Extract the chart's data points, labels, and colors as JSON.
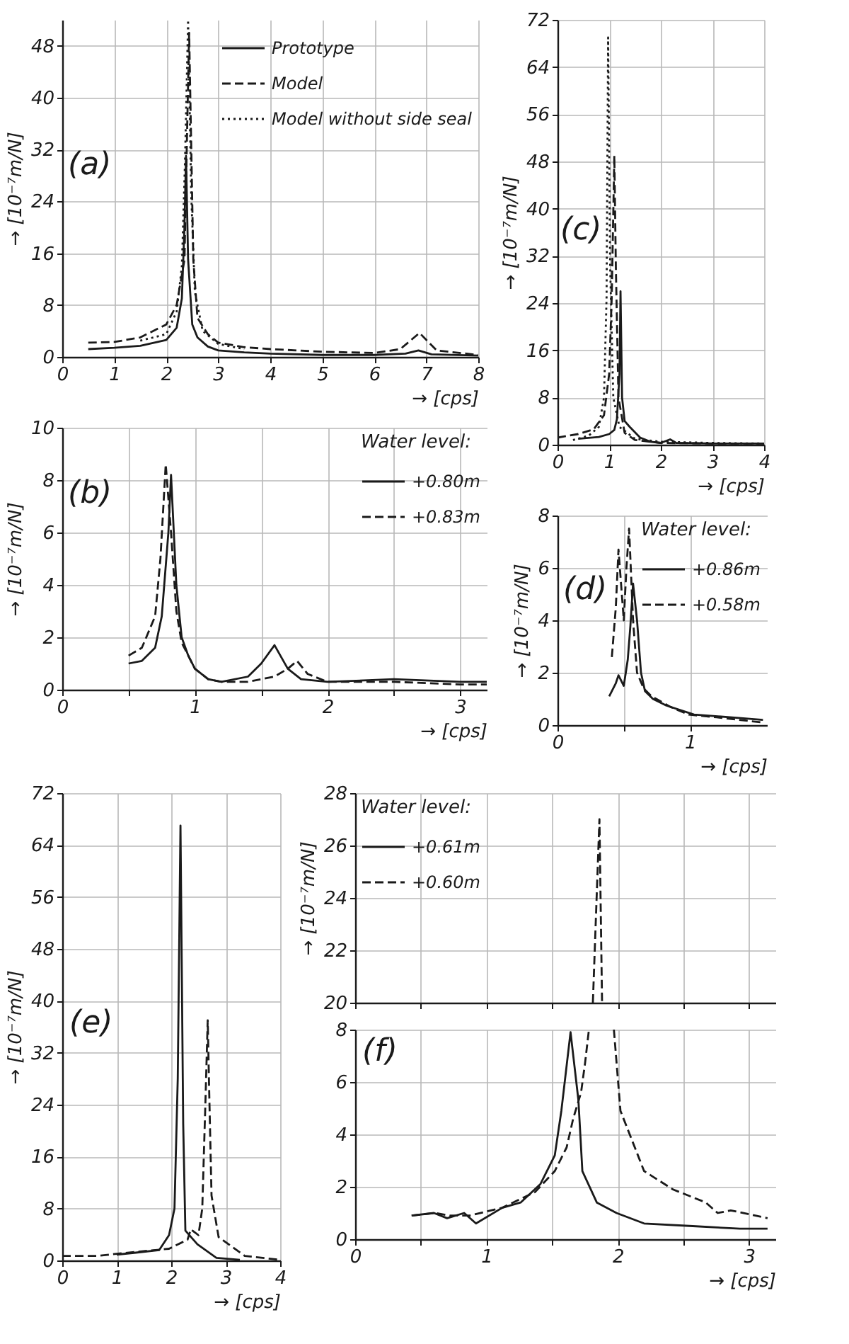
{
  "chart_data": [
    {
      "type": "line",
      "xlabel": "→ [cps]",
      "ylabel": "→ [10⁻⁷m/N]",
      "annotations": [
        "(a)"
      ],
      "xlim": [
        0,
        8
      ],
      "xticks": [
        0,
        1,
        2,
        3,
        4,
        5,
        6,
        7,
        8
      ],
      "ylim": [
        0,
        52
      ],
      "yticks": [
        0,
        8,
        16,
        24,
        32,
        40,
        48
      ],
      "grid": true,
      "legend": "top right",
      "series": [
        {
          "name": "Prototype",
          "color": "#1a1a1a",
          "line_style": "solid",
          "x": [
            0.5,
            1.0,
            1.5,
            2.0,
            2.2,
            2.3,
            2.35,
            2.38,
            2.42,
            2.5,
            2.6,
            2.8,
            3.0,
            3.5,
            4.0,
            5.0,
            6.0,
            6.6,
            6.85,
            7.1,
            8.0
          ],
          "values": [
            1.2,
            1.4,
            1.7,
            2.6,
            4.5,
            9,
            20,
            31,
            15,
            5,
            3,
            1.6,
            1.0,
            0.7,
            0.5,
            0.3,
            0.3,
            0.5,
            1.0,
            0.4,
            0.2
          ]
        },
        {
          "name": "Model",
          "color": "#1a1a1a",
          "line_style": "dashed",
          "x": [
            0.5,
            1.0,
            1.5,
            2.0,
            2.2,
            2.35,
            2.44,
            2.52,
            2.6,
            2.8,
            3.0,
            3.5,
            4.0,
            5.0,
            6.0,
            6.5,
            6.87,
            7.2,
            8.0
          ],
          "values": [
            2.2,
            2.3,
            3.0,
            5,
            8,
            15,
            50,
            15,
            6,
            3.5,
            2.2,
            1.5,
            1.2,
            0.8,
            0.6,
            1.2,
            3.7,
            1.0,
            0.3
          ]
        },
        {
          "name": "Model without side seal",
          "color": "#1a1a1a",
          "line_style": "dotted",
          "x": [
            1.5,
            2.0,
            2.2,
            2.3,
            2.36,
            2.42,
            2.48,
            2.55,
            2.7,
            3.0,
            3.5
          ],
          "values": [
            2.5,
            3.5,
            7,
            14,
            30,
            52,
            25,
            10,
            4,
            2,
            1.2
          ]
        }
      ]
    },
    {
      "type": "line",
      "xlabel": "→ [cps]",
      "ylabel": "→ [10⁻⁷m/N]",
      "annotations": [
        "(b)"
      ],
      "xlim": [
        0,
        3.2
      ],
      "xticks": [
        0,
        {
          "value": 0.5,
          "label": null
        },
        1,
        {
          "value": 1.5,
          "label": null
        },
        2,
        {
          "value": 2.5,
          "label": null
        },
        3
      ],
      "ylim": [
        0,
        10
      ],
      "yticks": [
        0,
        2,
        4,
        6,
        8,
        10
      ],
      "grid": true,
      "legend": "top right",
      "legend_title": "Water level:",
      "series": [
        {
          "name": "+0.80m",
          "color": "#1a1a1a",
          "line_style": "solid",
          "x": [
            0.5,
            0.6,
            0.7,
            0.75,
            0.8,
            0.82,
            0.86,
            0.9,
            0.95,
            1.0,
            1.1,
            1.2,
            1.4,
            1.5,
            1.6,
            1.7,
            1.8,
            2.0,
            2.5,
            3.0,
            3.2
          ],
          "values": [
            1.0,
            1.1,
            1.6,
            2.8,
            6,
            8.2,
            4,
            2,
            1.3,
            0.8,
            0.4,
            0.3,
            0.5,
            1.0,
            1.7,
            0.8,
            0.4,
            0.3,
            0.4,
            0.3,
            0.3
          ]
        },
        {
          "name": "+0.83m",
          "color": "#1a1a1a",
          "line_style": "dashed",
          "x": [
            0.5,
            0.6,
            0.7,
            0.74,
            0.78,
            0.82,
            0.86,
            0.9,
            1.0,
            1.1,
            1.2,
            1.4,
            1.6,
            1.7,
            1.77,
            1.85,
            2.0,
            2.5,
            3.0,
            3.2
          ],
          "values": [
            1.3,
            1.6,
            2.8,
            5,
            8.6,
            6,
            3,
            1.8,
            0.8,
            0.4,
            0.3,
            0.3,
            0.5,
            0.8,
            1.1,
            0.6,
            0.3,
            0.3,
            0.2,
            0.2
          ]
        }
      ]
    },
    {
      "type": "line",
      "xlabel": "→ [cps]",
      "ylabel": "→ [10⁻⁷m/N]",
      "annotations": [
        "(c)"
      ],
      "xlim": [
        0,
        4
      ],
      "xticks": [
        0,
        1,
        2,
        3,
        4
      ],
      "ylim": [
        0,
        72
      ],
      "yticks": [
        0,
        8,
        16,
        24,
        32,
        40,
        48,
        56,
        64,
        72
      ],
      "grid": true,
      "series": [
        {
          "color": "#1a1a1a",
          "line_style": "solid",
          "x": [
            0.4,
            0.8,
            1.0,
            1.1,
            1.15,
            1.2,
            1.22,
            1.25,
            1.3,
            1.4,
            1.6,
            1.8,
            2.0,
            2.18,
            2.3,
            3.0,
            4.0
          ],
          "values": [
            1.0,
            1.3,
            1.8,
            2.5,
            4.3,
            12,
            26,
            8,
            4,
            3,
            1.2,
            0.5,
            0.3,
            0.9,
            0.3,
            0.2,
            0.2
          ]
        },
        {
          "color": "#1a1a1a",
          "line_style": "dashed",
          "x": [
            0,
            0.4,
            0.7,
            0.9,
            1.0,
            1.05,
            1.1,
            1.13,
            1.18,
            1.3,
            1.5,
            2.0,
            3.0,
            4.0
          ],
          "values": [
            1.2,
            1.8,
            2.6,
            5,
            12,
            25,
            49,
            30,
            8,
            2.0,
            0.8,
            0.3,
            0.2,
            0.2
          ]
        },
        {
          "color": "#1a1a1a",
          "line_style": "dotted",
          "x": [
            0.3,
            0.6,
            0.8,
            0.9,
            0.95,
            0.98,
            1.02,
            1.08,
            1.2,
            1.5,
            2.0,
            3.0,
            4.0
          ],
          "values": [
            0.8,
            1.5,
            3,
            8,
            25,
            69,
            30,
            8,
            3,
            1,
            0.5,
            0.3,
            0.2
          ]
        }
      ]
    },
    {
      "type": "line",
      "xlabel": "→ [cps]",
      "ylabel": "→ [10⁻⁷m/N]",
      "annotations": [
        "(d)"
      ],
      "xlim": [
        0,
        1.58
      ],
      "xticks": [
        0,
        {
          "value": 0.5,
          "label": null
        },
        1
      ],
      "ylim": [
        0,
        8
      ],
      "yticks": [
        0,
        2,
        4,
        6,
        8
      ],
      "grid": true,
      "legend": "top right",
      "legend_title": "Water level:",
      "series": [
        {
          "name": "+0.86m",
          "color": "#1a1a1a",
          "line_style": "solid",
          "x": [
            0.39,
            0.44,
            0.46,
            0.5,
            0.53,
            0.55,
            0.57,
            0.6,
            0.63,
            0.66,
            0.72,
            0.82,
            1.03,
            1.3,
            1.55
          ],
          "values": [
            1.1,
            1.6,
            1.9,
            1.5,
            2.5,
            3.8,
            5.4,
            4.0,
            2.0,
            1.3,
            1.0,
            0.75,
            0.4,
            0.3,
            0.2
          ]
        },
        {
          "name": "+0.58m",
          "color": "#1a1a1a",
          "line_style": "dashed",
          "x": [
            0.41,
            0.44,
            0.46,
            0.5,
            0.52,
            0.54,
            0.57,
            0.6,
            0.65,
            0.71,
            0.85,
            0.99,
            1.2,
            1.55
          ],
          "values": [
            2.6,
            4.5,
            6.7,
            4,
            6,
            7.5,
            4,
            2.0,
            1.4,
            1.1,
            0.7,
            0.4,
            0.3,
            0.1
          ]
        }
      ]
    },
    {
      "type": "line",
      "xlabel": "→ [cps]",
      "ylabel": "→ [10⁻⁷m/N]",
      "annotations": [
        "(e)"
      ],
      "xlim": [
        0,
        4
      ],
      "xticks": [
        0,
        1,
        2,
        3,
        4
      ],
      "ylim": [
        0,
        72
      ],
      "yticks": [
        0,
        8,
        16,
        24,
        32,
        40,
        48,
        56,
        64,
        72
      ],
      "grid": true,
      "series": [
        {
          "color": "#1a1a1a",
          "line_style": "solid",
          "x": [
            1.0,
            1.35,
            1.78,
            1.96,
            2.06,
            2.12,
            2.17,
            2.22,
            2.26,
            2.48,
            2.83,
            3.26
          ],
          "values": [
            0.9,
            1.2,
            1.6,
            3.9,
            8,
            28,
            67,
            21,
            4.6,
            2.5,
            0.4,
            0.1
          ]
        },
        {
          "color": "#1a1a1a",
          "line_style": "dashed",
          "x": [
            0,
            0.65,
            1.09,
            1.96,
            2.3,
            2.36,
            2.39,
            2.5,
            2.57,
            2.63,
            2.67,
            2.7,
            2.74,
            2.87,
            3.35,
            4.0
          ],
          "values": [
            0.7,
            0.7,
            1.1,
            1.8,
            3.2,
            4.8,
            4.6,
            3.9,
            8,
            25,
            37,
            25,
            10,
            3.6,
            0.7,
            0.1
          ]
        }
      ]
    },
    {
      "type": "line",
      "ylabel": "→ [10⁻⁷m/N]",
      "xlim": [
        0,
        3.2
      ],
      "xticks": [
        0,
        {
          "value": 0.5,
          "label": null
        },
        1,
        {
          "value": 1.5,
          "label": null
        },
        2,
        {
          "value": 2.5,
          "label": null
        },
        3
      ],
      "ylim": [
        20,
        28
      ],
      "yticks": [
        20,
        22,
        24,
        26,
        28
      ],
      "grid": true,
      "tick_labels": "y",
      "legend": "top left",
      "legend_title": "Water level:",
      "series": [
        {
          "name": "+0.61m",
          "color": "#1a1a1a",
          "line_style": "solid"
        },
        {
          "name": "+0.60m",
          "color": "#1a1a1a",
          "line_style": "dashed",
          "x": [
            1.81,
            1.86,
            1.88
          ],
          "values": [
            20,
            27,
            20
          ]
        }
      ]
    },
    {
      "type": "line",
      "xlabel": "→ [cps]",
      "annotations": [
        "(f)"
      ],
      "xlim": [
        0,
        3.2
      ],
      "xticks": [
        0,
        {
          "value": 0.5,
          "label": null
        },
        1,
        {
          "value": 1.5,
          "label": null
        },
        2,
        {
          "value": 2.5,
          "label": null
        },
        3
      ],
      "ylim": [
        0,
        8
      ],
      "yticks": [
        0,
        2,
        4,
        6,
        8
      ],
      "grid": true,
      "series": [
        {
          "color": "#1a1a1a",
          "line_style": "solid",
          "x": [
            0.43,
            0.6,
            0.7,
            0.83,
            0.92,
            1.12,
            1.26,
            1.41,
            1.52,
            1.57,
            1.64,
            1.7,
            1.73,
            1.84,
            1.99,
            2.2,
            2.57,
            2.93,
            3.14
          ],
          "values": [
            0.9,
            1.0,
            0.8,
            1.0,
            0.6,
            1.2,
            1.4,
            2.1,
            3.2,
            4.9,
            7.9,
            5.3,
            2.6,
            1.4,
            1.0,
            0.6,
            0.5,
            0.4,
            0.4
          ]
        },
        {
          "color": "#1a1a1a",
          "line_style": "dashed",
          "x": [
            0.43,
            0.61,
            0.72,
            0.87,
            1.12,
            1.37,
            1.52,
            1.61,
            1.66,
            1.72,
            1.75,
            1.78,
            1.9,
            1.97,
            2.02,
            2.2,
            2.42,
            2.67,
            2.76,
            2.86,
            3.14
          ],
          "values": [
            0.9,
            1.0,
            0.9,
            0.9,
            1.2,
            1.8,
            2.6,
            3.5,
            4.6,
            5.6,
            6.7,
            8,
            null,
            8,
            4.9,
            2.6,
            1.9,
            1.4,
            1.0,
            1.1,
            0.8
          ]
        }
      ]
    }
  ]
}
